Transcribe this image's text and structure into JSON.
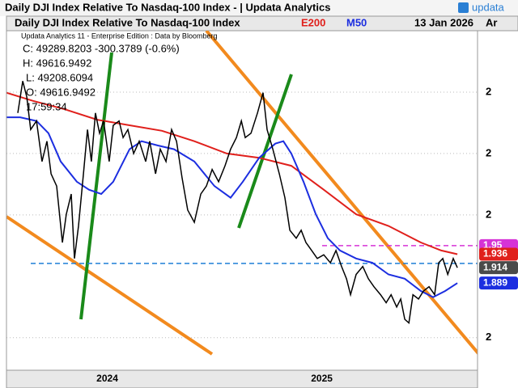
{
  "window": {
    "title": "Daily DJI Index Relative To Nasdaq-100 Index - | Updata Analytics",
    "logo": "updata"
  },
  "chart_data": {
    "type": "line",
    "title": "Daily DJI Index Relative To Nasdaq-100 Index",
    "date": "13 Jan 2026",
    "axis_header": "Ar",
    "info": [
      "Updata Analytics 11 - Enterprise Edition : Data by Bloomberg",
      "C: 49289.8203  -300.3789 (-0.6%)",
      "H: 49616.9492",
      "L: 49208.6094",
      "O: 49616.9492",
      "17:59:34"
    ],
    "xlim": [
      2024,
      2026.226
    ],
    "xticks": [
      {
        "value": 2024.5,
        "label": "2024"
      },
      {
        "value": 2025.5,
        "label": "2025"
      }
    ],
    "ylim": [
      1.747,
      2.3
    ],
    "yticks": [
      {
        "value": 2.2,
        "label": "2"
      },
      {
        "value": 2.1,
        "label": "2"
      },
      {
        "value": 2.0,
        "label": "2"
      },
      {
        "value": 1.8,
        "label": "2"
      }
    ],
    "grid": true,
    "series": [
      {
        "color": "#000000",
        "x": [
          2024.083,
          2024.106,
          2024.125,
          2024.143,
          2024.17,
          2024.196,
          2024.219,
          2024.238,
          2024.264,
          2024.291,
          2024.309,
          2024.332,
          2024.347,
          2024.366,
          2024.389,
          2024.408,
          2024.426,
          2024.445,
          2024.464,
          2024.483,
          2024.509,
          2024.528,
          2024.555,
          2024.574,
          2024.596,
          2024.623,
          2024.649,
          2024.679,
          2024.698,
          2024.725,
          2024.747,
          2024.774,
          2024.8,
          2024.823,
          2024.849,
          2024.875,
          2024.906,
          2024.936,
          2024.962,
          2024.989,
          2025.019,
          2025.049,
          2025.075,
          2025.102,
          2025.125,
          2025.143,
          2025.17,
          2025.2,
          2025.226,
          2025.245,
          2025.272,
          2025.302,
          2025.328,
          2025.351,
          2025.381,
          2025.404,
          2025.426,
          2025.453,
          2025.479,
          2025.509,
          2025.54,
          2025.566,
          2025.592,
          2025.615,
          2025.634,
          2025.66,
          2025.691,
          2025.717,
          2025.743,
          2025.774,
          2025.8,
          2025.823,
          2025.849,
          2025.868,
          2025.887,
          2025.906,
          2025.925,
          2025.951,
          2025.974,
          2026.0,
          2026.026,
          2026.045,
          2026.064,
          2026.087,
          2026.113,
          2026.132
        ],
        "values": [
          2.166,
          2.218,
          2.192,
          2.139,
          2.153,
          2.087,
          2.12,
          2.067,
          2.047,
          1.955,
          2.001,
          2.034,
          1.929,
          1.982,
          2.067,
          2.139,
          2.087,
          2.166,
          2.133,
          2.153,
          2.087,
          2.146,
          2.153,
          2.126,
          2.139,
          2.1,
          2.12,
          2.087,
          2.12,
          2.067,
          2.107,
          2.087,
          2.139,
          2.12,
          2.06,
          2.008,
          1.988,
          2.034,
          2.047,
          2.074,
          2.054,
          2.08,
          2.107,
          2.126,
          2.153,
          2.126,
          2.133,
          2.166,
          2.199,
          2.139,
          2.107,
          2.067,
          2.028,
          1.975,
          1.962,
          1.975,
          1.955,
          1.942,
          1.929,
          1.935,
          1.922,
          1.942,
          1.916,
          1.896,
          1.87,
          1.903,
          1.916,
          1.896,
          1.883,
          1.87,
          1.857,
          1.87,
          1.85,
          1.863,
          1.83,
          1.824,
          1.87,
          1.863,
          1.876,
          1.883,
          1.87,
          1.922,
          1.929,
          1.903,
          1.929,
          1.914
        ]
      },
      {
        "name": "E200",
        "color": "#e0201c",
        "x": [
          2024.03,
          2024.151,
          2024.302,
          2024.453,
          2024.604,
          2024.755,
          2024.906,
          2025.057,
          2025.208,
          2025.358,
          2025.509,
          2025.66,
          2025.811,
          2025.962,
          2026.057,
          2026.132
        ],
        "values": [
          2.199,
          2.186,
          2.172,
          2.155,
          2.146,
          2.137,
          2.12,
          2.1,
          2.093,
          2.08,
          2.041,
          2.001,
          1.982,
          1.955,
          1.942,
          1.936
        ]
      },
      {
        "name": "M50",
        "color": "#1c2ee0",
        "x": [
          2024.03,
          2024.094,
          2024.17,
          2024.226,
          2024.283,
          2024.358,
          2024.415,
          2024.472,
          2024.528,
          2024.604,
          2024.66,
          2024.736,
          2024.811,
          2024.906,
          2025.0,
          2025.075,
          2025.132,
          2025.208,
          2025.283,
          2025.321,
          2025.358,
          2025.415,
          2025.472,
          2025.528,
          2025.585,
          2025.66,
          2025.736,
          2025.811,
          2025.887,
          2025.962,
          2026.019,
          2026.075,
          2026.132
        ],
        "values": [
          2.159,
          2.159,
          2.153,
          2.133,
          2.087,
          2.054,
          2.041,
          2.034,
          2.054,
          2.107,
          2.12,
          2.113,
          2.107,
          2.087,
          2.047,
          2.028,
          2.054,
          2.093,
          2.116,
          2.12,
          2.1,
          2.054,
          2.001,
          1.962,
          1.942,
          1.929,
          1.922,
          1.903,
          1.896,
          1.876,
          1.866,
          1.876,
          1.889
        ]
      }
    ],
    "levels": [
      {
        "value": 1.95,
        "color": "#d633d6"
      },
      {
        "value": 1.921,
        "color": "#1e7fd6"
      }
    ],
    "badges": [
      {
        "value": 1.95,
        "label": "1.95",
        "color": "#d633d6"
      },
      {
        "value": 1.936,
        "label": "1.936",
        "color": "#e0201c"
      },
      {
        "value": 1.914,
        "label": "1.914",
        "color": "#4a4a4a"
      },
      {
        "value": 1.889,
        "label": "1.889",
        "color": "#1c2ee0"
      }
    ]
  }
}
